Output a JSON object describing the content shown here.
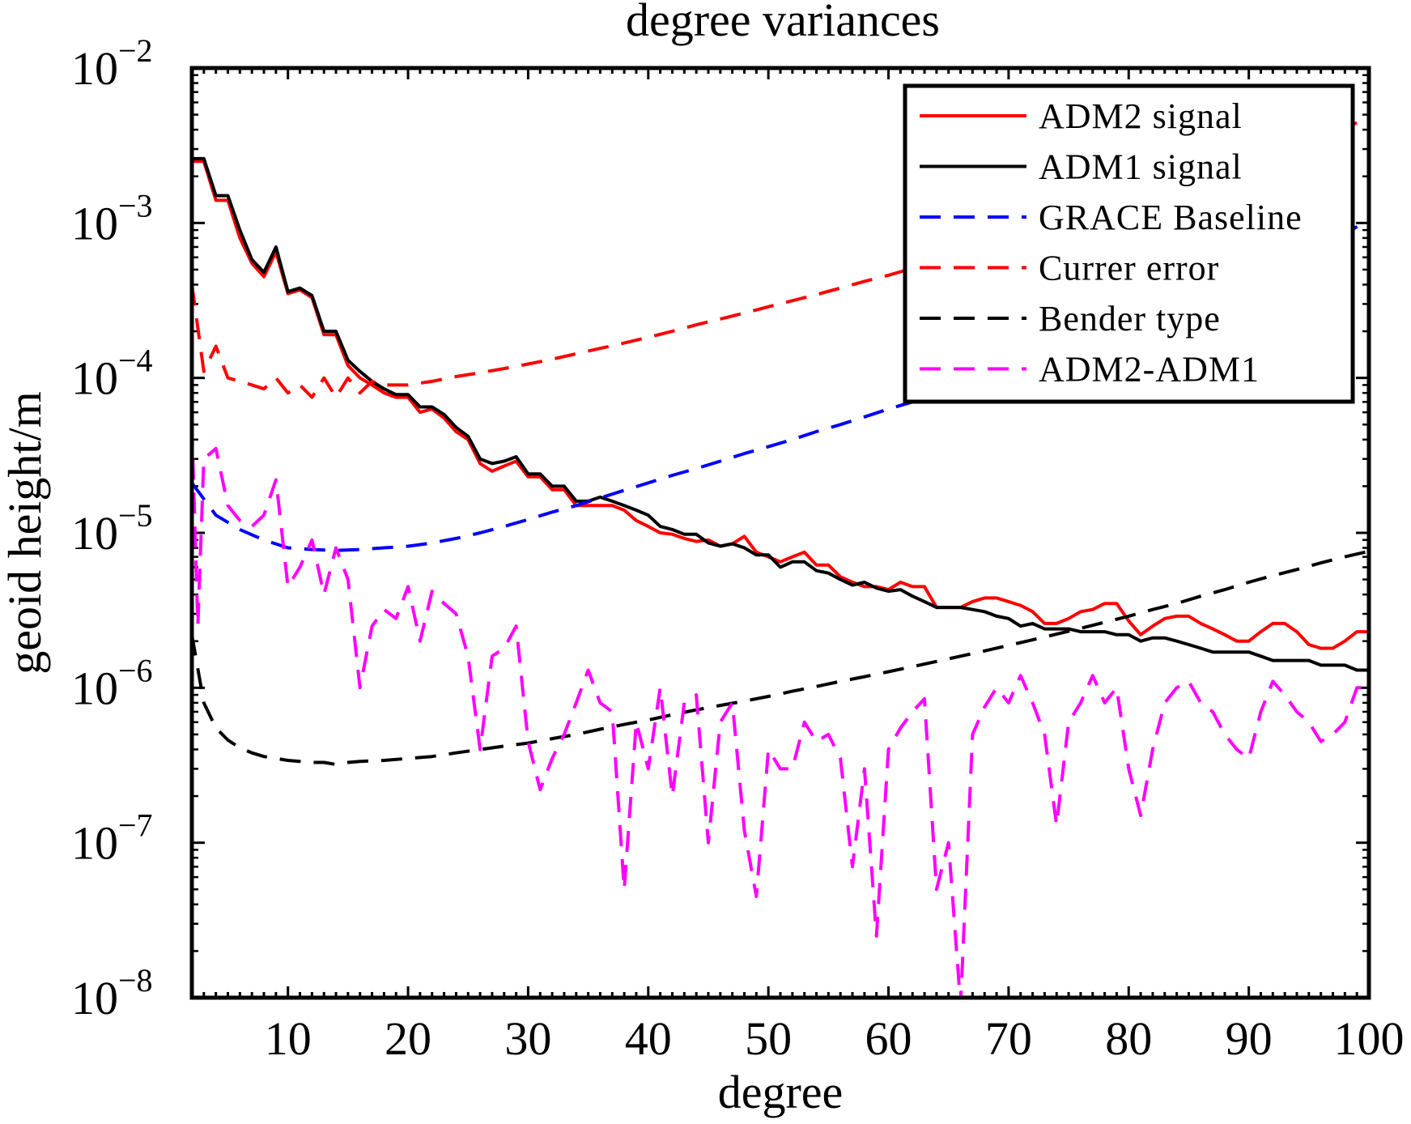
{
  "chart_data": {
    "type": "line",
    "title": "degree variances",
    "xlabel": "degree",
    "ylabel": "geoid height/m",
    "xlim": [
      2,
      100
    ],
    "ylim": [
      1e-08,
      0.01
    ],
    "yscale": "log",
    "xticks": [
      10,
      20,
      30,
      40,
      50,
      60,
      70,
      80,
      90,
      100
    ],
    "xtick_labels": [
      "10",
      "20",
      "30",
      "40",
      "50",
      "60",
      "70",
      "80",
      "90",
      "100"
    ],
    "yticks": [
      1e-08,
      1e-07,
      1e-06,
      1e-05,
      0.0001,
      0.001,
      0.01
    ],
    "ytick_labels": [
      {
        "base": "10",
        "exp": "−8"
      },
      {
        "base": "10",
        "exp": "−7"
      },
      {
        "base": "10",
        "exp": "−6"
      },
      {
        "base": "10",
        "exp": "−5"
      },
      {
        "base": "10",
        "exp": "−4"
      },
      {
        "base": "10",
        "exp": "−3"
      },
      {
        "base": "10",
        "exp": "−2"
      }
    ],
    "legend_position": "top-right",
    "series": [
      {
        "name": "ADM2 signal",
        "color": "#ff0000",
        "dash": "solid",
        "x": [
          2,
          3,
          4,
          5,
          6,
          7,
          8,
          9,
          10,
          11,
          12,
          13,
          14,
          15,
          16,
          17,
          18,
          19,
          20,
          21,
          22,
          23,
          24,
          25,
          26,
          27,
          28,
          29,
          30,
          31,
          32,
          33,
          34,
          35,
          36,
          37,
          38,
          39,
          40,
          41,
          42,
          43,
          44,
          45,
          46,
          47,
          48,
          49,
          50,
          51,
          52,
          53,
          54,
          55,
          56,
          57,
          58,
          59,
          60,
          61,
          62,
          63,
          64,
          65,
          66,
          67,
          68,
          69,
          70,
          71,
          72,
          73,
          74,
          75,
          76,
          77,
          78,
          79,
          80,
          81,
          82,
          83,
          84,
          85,
          86,
          87,
          88,
          89,
          90,
          91,
          92,
          93,
          94,
          95,
          96,
          97,
          98,
          99,
          100
        ],
        "y": [
          0.0025,
          0.0025,
          0.0014,
          0.0014,
          0.0008,
          0.00055,
          0.00045,
          0.00065,
          0.00035,
          0.00037,
          0.00033,
          0.00019,
          0.00019,
          0.00012,
          0.0001,
          9e-05,
          8e-05,
          7.5e-05,
          7.5e-05,
          6e-05,
          6.3e-05,
          5.5e-05,
          4.5e-05,
          4e-05,
          2.8e-05,
          2.5e-05,
          2.7e-05,
          2.9e-05,
          2.3e-05,
          2.3e-05,
          1.9e-05,
          1.9e-05,
          1.5e-05,
          1.5e-05,
          1.5e-05,
          1.5e-05,
          1.4e-05,
          1.2e-05,
          1.1e-05,
          1e-05,
          9.8e-06,
          9.2e-06,
          8.8e-06,
          9e-06,
          8.2e-06,
          8.5e-06,
          9.5e-06,
          7.5e-06,
          7e-06,
          6.5e-06,
          7e-06,
          7.5e-06,
          6.2e-06,
          6.2e-06,
          5.2e-06,
          4.8e-06,
          4.5e-06,
          4.5e-06,
          4.3e-06,
          4.8e-06,
          4.5e-06,
          4.5e-06,
          3.3e-06,
          3.3e-06,
          3.3e-06,
          3.6e-06,
          3.8e-06,
          3.8e-06,
          3.6e-06,
          3.4e-06,
          3.1e-06,
          2.6e-06,
          2.6e-06,
          2.8e-06,
          3.1e-06,
          3.2e-06,
          3.5e-06,
          3.5e-06,
          2.7e-06,
          2.2e-06,
          2.5e-06,
          2.8e-06,
          2.9e-06,
          2.9e-06,
          2.6e-06,
          2.4e-06,
          2.2e-06,
          2e-06,
          2e-06,
          2.3e-06,
          2.6e-06,
          2.6e-06,
          2.3e-06,
          1.9e-06,
          1.8e-06,
          1.8e-06,
          2e-06,
          2.3e-06,
          2.3e-06
        ]
      },
      {
        "name": "ADM1 signal",
        "color": "#000000",
        "dash": "solid",
        "x": [
          2,
          3,
          4,
          5,
          6,
          7,
          8,
          9,
          10,
          11,
          12,
          13,
          14,
          15,
          16,
          17,
          18,
          19,
          20,
          21,
          22,
          23,
          24,
          25,
          26,
          27,
          28,
          29,
          30,
          31,
          32,
          33,
          34,
          35,
          36,
          37,
          38,
          39,
          40,
          41,
          42,
          43,
          44,
          45,
          46,
          47,
          48,
          49,
          50,
          51,
          52,
          53,
          54,
          55,
          56,
          57,
          58,
          59,
          60,
          61,
          62,
          63,
          64,
          65,
          66,
          67,
          68,
          69,
          70,
          71,
          72,
          73,
          74,
          75,
          76,
          77,
          78,
          79,
          80,
          81,
          82,
          83,
          84,
          85,
          86,
          87,
          88,
          89,
          90,
          91,
          92,
          93,
          94,
          95,
          96,
          97,
          98,
          99,
          100
        ],
        "y": [
          0.0026,
          0.0026,
          0.0015,
          0.0015,
          0.0009,
          0.00058,
          0.00048,
          0.0007,
          0.00036,
          0.00038,
          0.00034,
          0.0002,
          0.0002,
          0.00013,
          0.00011,
          9.5e-05,
          8.5e-05,
          7.8e-05,
          7.8e-05,
          6.5e-05,
          6.5e-05,
          5.8e-05,
          4.8e-05,
          4.2e-05,
          3e-05,
          2.8e-05,
          2.9e-05,
          3.1e-05,
          2.4e-05,
          2.4e-05,
          2e-05,
          2e-05,
          1.6e-05,
          1.6e-05,
          1.7e-05,
          1.6e-05,
          1.5e-05,
          1.4e-05,
          1.3e-05,
          1.1e-05,
          1.05e-05,
          9.8e-06,
          9.8e-06,
          8.6e-06,
          8.2e-06,
          8.5e-06,
          8e-06,
          7.2e-06,
          7.2e-06,
          6e-06,
          6.5e-06,
          6.5e-06,
          5.7e-06,
          5.5e-06,
          5e-06,
          4.6e-06,
          4.8e-06,
          4.4e-06,
          4.2e-06,
          4.3e-06,
          3.9e-06,
          3.6e-06,
          3.3e-06,
          3.3e-06,
          3.3e-06,
          3.2e-06,
          3.1e-06,
          2.9e-06,
          2.8e-06,
          2.5e-06,
          2.6e-06,
          2.4e-06,
          2.4e-06,
          2.4e-06,
          2.3e-06,
          2.3e-06,
          2.3e-06,
          2.2e-06,
          2.2e-06,
          2e-06,
          2.1e-06,
          2.1e-06,
          2e-06,
          1.9e-06,
          1.8e-06,
          1.7e-06,
          1.7e-06,
          1.7e-06,
          1.7e-06,
          1.6e-06,
          1.5e-06,
          1.5e-06,
          1.5e-06,
          1.5e-06,
          1.4e-06,
          1.4e-06,
          1.4e-06,
          1.3e-06,
          1.3e-06
        ]
      },
      {
        "name": "GRACE Baseline",
        "color": "#0000ff",
        "dash": "dashed",
        "x": [
          2,
          4,
          6,
          8,
          10,
          12,
          14,
          16,
          18,
          20,
          22,
          24,
          26,
          28,
          30,
          32,
          34,
          36,
          38,
          40,
          42,
          44,
          46,
          48,
          50,
          52,
          54,
          56,
          58,
          60,
          62,
          64,
          66,
          68,
          70,
          72,
          74,
          76,
          78,
          80,
          82,
          84,
          86,
          88,
          90,
          92,
          94,
          96,
          98,
          100
        ],
        "y": [
          2.1e-05,
          1.3e-05,
          1.05e-05,
          9e-06,
          8e-06,
          7.8e-06,
          7.7e-06,
          7.8e-06,
          8e-06,
          8.2e-06,
          8.6e-06,
          9.2e-06,
          1e-05,
          1.1e-05,
          1.22e-05,
          1.36e-05,
          1.5e-05,
          1.68e-05,
          1.88e-05,
          2.1e-05,
          2.35e-05,
          2.6e-05,
          2.9e-05,
          3.25e-05,
          3.6e-05,
          4e-05,
          4.5e-05,
          5e-05,
          5.6e-05,
          6.3e-05,
          7e-05,
          7.8e-05,
          8.7e-05,
          9.8e-05,
          0.00011,
          0.000125,
          0.00014,
          0.000158,
          0.000178,
          0.0002,
          0.000228,
          0.000258,
          0.00029,
          0.00033,
          0.00038,
          0.00045,
          0.00055,
          0.00068,
          0.00085,
          0.00105
        ]
      },
      {
        "name": "Currer error",
        "color": "#ff0000",
        "dash": "dashed",
        "x": [
          2,
          3,
          4,
          5,
          6,
          7,
          8,
          9,
          10,
          11,
          12,
          13,
          14,
          15,
          16,
          17,
          18,
          19,
          20,
          22,
          24,
          26,
          28,
          30,
          32,
          34,
          36,
          38,
          40,
          42,
          44,
          46,
          48,
          50,
          52,
          54,
          56,
          58,
          60,
          62,
          64,
          66,
          68,
          70,
          72,
          74,
          76,
          78,
          80,
          82,
          84,
          86,
          88,
          90,
          92,
          94,
          96,
          98,
          100
        ],
        "y": [
          0.0004,
          0.00011,
          0.00016,
          0.0001,
          9.5e-05,
          9e-05,
          8.5e-05,
          0.0001,
          8e-05,
          9e-05,
          7.5e-05,
          0.0001,
          7.5e-05,
          0.0001,
          8e-05,
          9.5e-05,
          9e-05,
          9e-05,
          9e-05,
          9.5e-05,
          0.000102,
          0.000108,
          0.000115,
          0.000123,
          0.000132,
          0.000143,
          0.000155,
          0.000168,
          0.000183,
          0.0002,
          0.00022,
          0.00024,
          0.000262,
          0.000288,
          0.000315,
          0.000345,
          0.00038,
          0.00042,
          0.00046,
          0.00051,
          0.00056,
          0.00062,
          0.00069,
          0.00076,
          0.00085,
          0.00094,
          0.00105,
          0.00117,
          0.0013,
          0.00145,
          0.0016,
          0.0018,
          0.002,
          0.0023,
          0.0026,
          0.003,
          0.0035,
          0.0041,
          0.0048
        ]
      },
      {
        "name": "Bender type",
        "color": "#000000",
        "dash": "dashed",
        "x": [
          2,
          3,
          4,
          5,
          6,
          7,
          8,
          9,
          10,
          11,
          12,
          13,
          14,
          15,
          16,
          18,
          20,
          22,
          24,
          26,
          28,
          30,
          32,
          34,
          36,
          38,
          40,
          42,
          44,
          46,
          48,
          50,
          52,
          54,
          56,
          58,
          60,
          62,
          64,
          66,
          68,
          70,
          72,
          74,
          76,
          78,
          80,
          82,
          84,
          86,
          88,
          90,
          92,
          94,
          96,
          98,
          100
        ],
        "y": [
          2.2e-06,
          8e-07,
          5.5e-07,
          4.6e-07,
          4.1e-07,
          3.8e-07,
          3.6e-07,
          3.5e-07,
          3.4e-07,
          3.35e-07,
          3.3e-07,
          3.3e-07,
          3.2e-07,
          3.3e-07,
          3.35e-07,
          3.4e-07,
          3.5e-07,
          3.6e-07,
          3.8e-07,
          4e-07,
          4.2e-07,
          4.4e-07,
          4.7e-07,
          5e-07,
          5.4e-07,
          5.8e-07,
          6.2e-07,
          6.7e-07,
          7.2e-07,
          7.7e-07,
          8.2e-07,
          8.8e-07,
          9.5e-07,
          1.02e-06,
          1.1e-06,
          1.18e-06,
          1.27e-06,
          1.37e-06,
          1.48e-06,
          1.6e-06,
          1.73e-06,
          1.88e-06,
          2.04e-06,
          2.22e-06,
          2.42e-06,
          2.65e-06,
          2.9e-06,
          3.2e-06,
          3.5e-06,
          3.9e-06,
          4.3e-06,
          4.8e-06,
          5.3e-06,
          5.8e-06,
          6.4e-06,
          7e-06,
          7.6e-06
        ]
      },
      {
        "name": "ADM2-ADM1",
        "color": "#ff00ff",
        "dash": "dashed",
        "x": [
          2,
          2.5,
          3,
          4,
          5,
          6,
          7,
          8,
          9,
          10,
          11,
          12,
          13,
          14,
          15,
          16,
          17,
          18,
          19,
          20,
          21,
          22,
          23,
          24,
          25,
          26,
          27,
          28,
          29,
          30,
          31,
          32,
          33,
          34,
          35,
          36,
          37,
          38,
          39,
          40,
          41,
          42,
          43,
          44,
          45,
          46,
          47,
          48,
          49,
          50,
          51,
          52,
          53,
          54,
          55,
          56,
          57,
          58,
          59,
          60,
          61,
          62,
          63,
          64,
          65,
          66,
          67,
          68,
          69,
          70,
          71,
          72,
          73,
          74,
          75,
          76,
          77,
          78,
          79,
          80,
          81,
          82,
          83,
          84,
          85,
          86,
          87,
          88,
          89,
          90,
          91,
          92,
          93,
          94,
          95,
          96,
          97,
          98,
          99,
          100
        ],
        "y": [
          5e-05,
          2.5e-06,
          3e-05,
          3.5e-05,
          1.5e-05,
          1.2e-05,
          1.1e-05,
          1.3e-05,
          2.2e-05,
          4.5e-06,
          6e-06,
          9e-06,
          4e-06,
          8e-06,
          5e-06,
          1e-06,
          2.5e-06,
          3.2e-06,
          2.8e-06,
          4.5e-06,
          2e-06,
          4.2e-06,
          3.5e-06,
          3e-06,
          1.6e-06,
          4e-07,
          1.6e-06,
          1.8e-06,
          2.5e-06,
          4.5e-07,
          2.2e-07,
          3.5e-07,
          5e-07,
          8e-07,
          1.3e-06,
          8e-07,
          7e-07,
          5e-08,
          6e-07,
          3e-07,
          1e-06,
          2e-07,
          8e-07,
          9e-07,
          1e-07,
          6e-07,
          8e-07,
          1.2e-07,
          4.5e-08,
          4e-07,
          3e-07,
          3e-07,
          6e-07,
          4.5e-07,
          5e-07,
          3.5e-07,
          7e-08,
          3e-07,
          2.5e-08,
          4e-07,
          5.5e-07,
          7e-07,
          8.5e-07,
          5e-08,
          1e-07,
          9e-09,
          5e-07,
          7.5e-07,
          1e-06,
          8e-07,
          1.2e-06,
          8e-07,
          5e-07,
          1.3e-07,
          6e-07,
          8e-07,
          1.2e-06,
          8e-07,
          1e-06,
          3e-07,
          1.5e-07,
          4e-07,
          8e-07,
          1e-06,
          1.1e-06,
          8e-07,
          7e-07,
          5e-07,
          4e-07,
          3.5e-07,
          7e-07,
          1.1e-06,
          9e-07,
          7e-07,
          6e-07,
          4.5e-07,
          5e-07,
          6e-07,
          1e-06,
          1e-06
        ]
      }
    ]
  }
}
